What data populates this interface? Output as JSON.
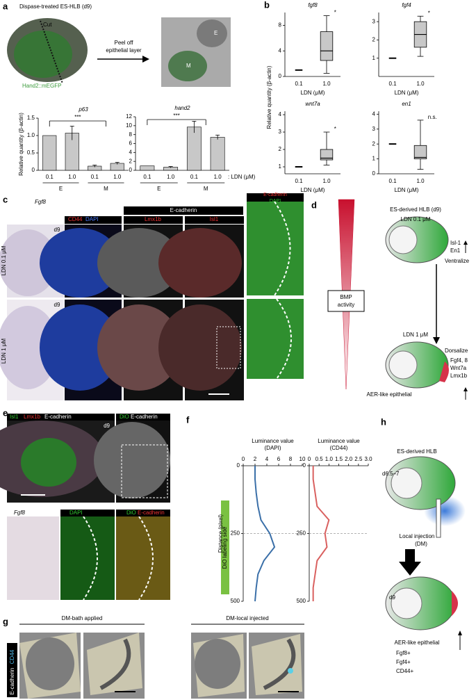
{
  "panels": {
    "a": {
      "label": "a",
      "title": "Dispase-treated ES-HLB (d9)",
      "cut": "Cut",
      "reporter": "Hand2::mEGFP",
      "action": [
        "Peel off",
        "epithelial layer"
      ],
      "E": "E",
      "M": "M"
    },
    "b": {
      "label": "b",
      "ylabel": "Relative quantity (β-actin)"
    },
    "c": {
      "label": "c",
      "fgf8": "Fgf8",
      "day": "d9",
      "cd44": "CD44",
      "dapi": "DAPI",
      "ecad_header": "E-cadherin",
      "lmx1b": "Lmx1b",
      "isl1": "Isl1",
      "ecad": "E-cadherin",
      "row1": "LDN 0.1 μM",
      "row2": "LDN 1 μM"
    },
    "d": {
      "label": "d",
      "title": "ES-derived HLB (d9)",
      "ldn1": "LDN 0.1 μM",
      "ldn2": "LDN 1 μM",
      "bmp": [
        "BMP",
        "activity"
      ],
      "up_genes": [
        "Isl-1",
        "En1"
      ],
      "ventral": "Ventralize",
      "dorsal": "Dorsalize",
      "down_genes": [
        "Fgf4, 8",
        "Wnt7a",
        "Lmx1b"
      ],
      "aer": "AER-like epithelial"
    },
    "e": {
      "label": "e",
      "isl1": "Isl1",
      "lmx1b": "Lmx1b",
      "ecad": "E-cadherin",
      "dio": "DiO",
      "day": "d9",
      "fgf8": "Fgf8",
      "dapi": "DAPI"
    },
    "f": {
      "label": "f",
      "side": "DiO labeling side"
    },
    "g": {
      "label": "g",
      "stain1": "CD44",
      "stain2": "E-cadherin",
      "bath": "DM-bath applied",
      "local": "DM-local injected"
    },
    "h": {
      "label": "h",
      "title": "ES-derived HLB",
      "stage1": "d6.5–7",
      "injection": [
        "Local injection",
        "(DM)"
      ],
      "stage2": "d9",
      "aer": "AER-like epithelial",
      "markers": [
        "Fgf8+",
        "Fgf4+",
        "CD44+"
      ]
    }
  },
  "chart_data": [
    {
      "type": "bar",
      "title": "p63",
      "ylabel": "Relative quantity (β-actin)",
      "categories": [
        "0.1",
        "1.0",
        "0.1",
        "1.0"
      ],
      "groups": [
        "E",
        "M"
      ],
      "values": [
        1.0,
        1.07,
        0.12,
        0.2
      ],
      "errors": [
        0,
        0.2,
        0.03,
        0.03
      ],
      "color": "#c8c8c8",
      "ylim": [
        0,
        1.5
      ],
      "yticks": [
        0,
        0.5,
        {
          "value": 1,
          "label": "1.0"
        },
        1.5
      ],
      "annotation": "***"
    },
    {
      "type": "bar",
      "title": "hand2",
      "categories": [
        "0.1",
        "1.0",
        "0.1",
        "1.0"
      ],
      "groups": [
        "E",
        "M"
      ],
      "values": [
        1.0,
        0.7,
        9.7,
        7.4
      ],
      "errors": [
        0,
        0.15,
        1.3,
        0.5
      ],
      "color": "#c8c8c8",
      "ylim": [
        0,
        12
      ],
      "yticks": [
        0,
        2,
        4,
        6,
        8,
        10,
        12
      ],
      "annotation": "***",
      "xlabel": ": LDN (μM)"
    },
    {
      "type": "box",
      "title": "fgf8",
      "categories": [
        "0.1",
        "1.0"
      ],
      "xlabel": "LDN (μM)",
      "values": [
        {
          "median": 1
        },
        {
          "min": 0.5,
          "q1": 2.5,
          "median": 4,
          "q3": 7,
          "max": 9.5
        }
      ],
      "color": "#c8c8c8",
      "ylim": [
        0,
        10
      ],
      "yticks": [
        0,
        4,
        8
      ],
      "annotation": "*"
    },
    {
      "type": "box",
      "title": "fgf4",
      "categories": [
        "0.1",
        "1.0"
      ],
      "xlabel": "LDN (μM)",
      "values": [
        {
          "median": 1
        },
        {
          "min": 1.1,
          "q1": 1.6,
          "median": 2.3,
          "q3": 3.0,
          "max": 3.3
        }
      ],
      "color": "#c8c8c8",
      "ylim": [
        0,
        3.5
      ],
      "yticks": [
        1,
        2,
        3
      ],
      "annotation": "*"
    },
    {
      "type": "box",
      "title": "wnt7a",
      "categories": [
        "0.1",
        "1.0"
      ],
      "xlabel": "LDN (μM)",
      "values": [
        {
          "median": 1
        },
        {
          "min": 1.1,
          "q1": 1.4,
          "median": 1.5,
          "q3": 2.0,
          "max": 3.0
        }
      ],
      "color": "#c8c8c8",
      "ylim": [
        0.6,
        4.2
      ],
      "yticks": [
        1,
        2,
        3,
        4
      ],
      "annotation": "*"
    },
    {
      "type": "box",
      "title": "en1",
      "categories": [
        "0.1",
        "1.0"
      ],
      "xlabel": "LDN (μM)",
      "values": [
        {
          "median": 2
        },
        {
          "min": 0.3,
          "q1": 1.0,
          "median": 1.1,
          "q3": 1.9,
          "max": 3.6
        }
      ],
      "color": "#c8c8c8",
      "ylim": [
        0,
        4.2
      ],
      "yticks": [
        0,
        1,
        2,
        3,
        4
      ],
      "annotation": "n.s."
    },
    {
      "type": "line",
      "title": [
        "Luminance value",
        "(DAPI)"
      ],
      "ylabel": "Distance (pixel)",
      "y": [
        0,
        50,
        100,
        150,
        200,
        250,
        300,
        350,
        400,
        450,
        500
      ],
      "values": [
        2.0,
        2.0,
        2.2,
        2.5,
        3.0,
        4.5,
        5.3,
        3.5,
        2.5,
        2.2,
        2.0
      ],
      "color": "#3a6fa8",
      "xlim": [
        0,
        10
      ],
      "xticks": [
        0,
        2,
        4,
        6,
        8,
        10
      ],
      "ylim": [
        0,
        500
      ],
      "yticks": [
        0,
        250,
        500
      ]
    },
    {
      "type": "line",
      "title": [
        "Luminance value",
        "(CD44)"
      ],
      "y": [
        0,
        50,
        100,
        150,
        200,
        250,
        300,
        350,
        400,
        450,
        500
      ],
      "values": [
        0.2,
        0.2,
        0.3,
        0.4,
        1.0,
        0.8,
        0.9,
        0.4,
        0.3,
        0.2,
        0.2
      ],
      "color": "#d9605f",
      "xlim": [
        0,
        3
      ],
      "xticks": [
        0,
        0.5,
        {
          "value": 1,
          "label": "1.0"
        },
        1.5,
        {
          "value": 2,
          "label": "2.0"
        },
        2.5,
        {
          "value": 3,
          "label": "3.0"
        }
      ],
      "ylim": [
        0,
        500
      ],
      "yticks": [
        0,
        250,
        500
      ]
    }
  ]
}
